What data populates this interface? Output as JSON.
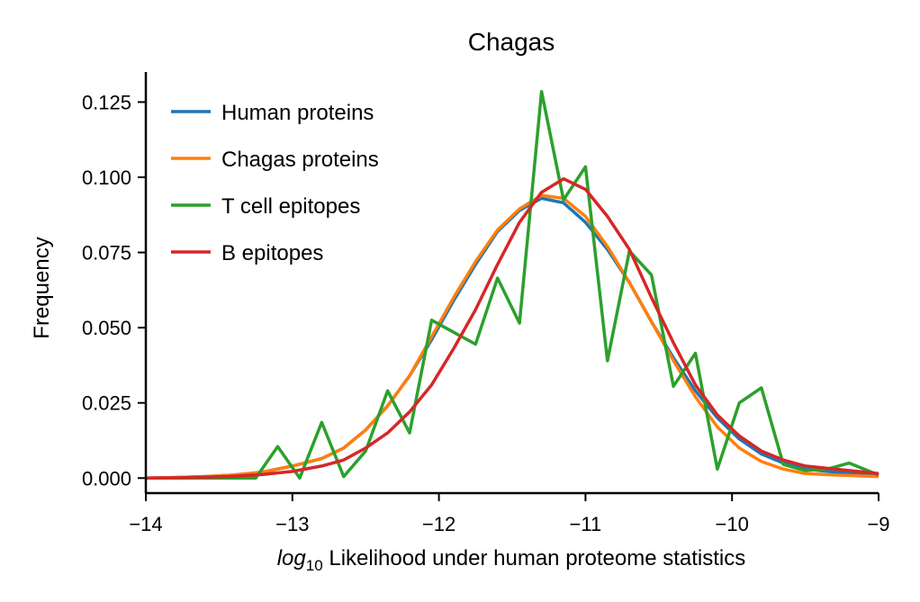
{
  "chart_data": {
    "type": "line",
    "title": "Chagas",
    "xlabel_prefix": "log",
    "xlabel_sub": "10",
    "xlabel_rest": " Likelihood under human proteome statistics",
    "ylabel": "Frequency",
    "xlim": [
      -14,
      -9
    ],
    "ylim": [
      -0.005,
      0.135
    ],
    "xticks": [
      -14,
      -13,
      -12,
      -11,
      -10,
      -9
    ],
    "xtick_labels": [
      "−14",
      "−13",
      "−12",
      "−11",
      "−10",
      "−9"
    ],
    "yticks": [
      0.0,
      0.025,
      0.05,
      0.075,
      0.1,
      0.125
    ],
    "ytick_labels": [
      "0.000",
      "0.025",
      "0.050",
      "0.075",
      "0.100",
      "0.125"
    ],
    "legend_position": "top-left",
    "series": [
      {
        "name": "Human proteins",
        "color": "#1f77b4",
        "x": [
          -14.0,
          -13.8,
          -13.6,
          -13.4,
          -13.2,
          -13.0,
          -12.8,
          -12.65,
          -12.5,
          -12.35,
          -12.2,
          -12.05,
          -11.9,
          -11.75,
          -11.6,
          -11.45,
          -11.3,
          -11.15,
          -11.0,
          -10.85,
          -10.7,
          -10.55,
          -10.4,
          -10.25,
          -10.1,
          -9.95,
          -9.8,
          -9.65,
          -9.5,
          -9.3,
          -9.0
        ],
        "y": [
          0.0,
          0.0002,
          0.0005,
          0.001,
          0.002,
          0.004,
          0.0065,
          0.01,
          0.016,
          0.024,
          0.034,
          0.046,
          0.059,
          0.071,
          0.082,
          0.089,
          0.093,
          0.0915,
          0.085,
          0.076,
          0.065,
          0.052,
          0.04,
          0.029,
          0.02,
          0.013,
          0.008,
          0.005,
          0.003,
          0.002,
          0.001
        ]
      },
      {
        "name": "Chagas proteins",
        "color": "#ff7f0e",
        "x": [
          -14.0,
          -13.8,
          -13.6,
          -13.4,
          -13.2,
          -13.0,
          -12.8,
          -12.65,
          -12.5,
          -12.35,
          -12.2,
          -12.05,
          -11.9,
          -11.75,
          -11.6,
          -11.45,
          -11.3,
          -11.15,
          -11.0,
          -10.85,
          -10.7,
          -10.55,
          -10.4,
          -10.25,
          -10.1,
          -9.95,
          -9.8,
          -9.65,
          -9.5,
          -9.3,
          -9.0
        ],
        "y": [
          0.0,
          0.0002,
          0.0005,
          0.001,
          0.002,
          0.004,
          0.0065,
          0.01,
          0.016,
          0.024,
          0.034,
          0.047,
          0.06,
          0.072,
          0.0825,
          0.0895,
          0.094,
          0.093,
          0.087,
          0.077,
          0.065,
          0.052,
          0.039,
          0.027,
          0.017,
          0.01,
          0.0055,
          0.003,
          0.0015,
          0.001,
          0.0005
        ]
      },
      {
        "name": "T cell epitopes",
        "color": "#2ca02c",
        "x": [
          -14.0,
          -13.7,
          -13.45,
          -13.25,
          -13.1,
          -12.95,
          -12.8,
          -12.65,
          -12.5,
          -12.35,
          -12.2,
          -12.05,
          -11.9,
          -11.75,
          -11.6,
          -11.45,
          -11.3,
          -11.15,
          -11.0,
          -10.85,
          -10.7,
          -10.55,
          -10.4,
          -10.25,
          -10.1,
          -9.95,
          -9.8,
          -9.65,
          -9.5,
          -9.35,
          -9.2,
          -9.0
        ],
        "y": [
          0.0,
          0.0,
          0.0,
          0.0,
          0.0105,
          0.0,
          0.0185,
          0.0005,
          0.009,
          0.029,
          0.015,
          0.0525,
          0.0485,
          0.0445,
          0.0665,
          0.0515,
          0.1285,
          0.0925,
          0.1035,
          0.039,
          0.0755,
          0.0675,
          0.0305,
          0.0415,
          0.003,
          0.025,
          0.03,
          0.0045,
          0.0025,
          0.003,
          0.005,
          0.001
        ]
      },
      {
        "name": "B epitopes",
        "color": "#d62728",
        "x": [
          -14.0,
          -13.8,
          -13.6,
          -13.4,
          -13.2,
          -13.0,
          -12.8,
          -12.65,
          -12.5,
          -12.35,
          -12.2,
          -12.05,
          -11.9,
          -11.75,
          -11.6,
          -11.45,
          -11.3,
          -11.15,
          -11.0,
          -10.85,
          -10.7,
          -10.55,
          -10.4,
          -10.25,
          -10.1,
          -9.95,
          -9.8,
          -9.65,
          -9.5,
          -9.3,
          -9.0
        ],
        "y": [
          0.0,
          0.0001,
          0.0003,
          0.0006,
          0.0012,
          0.0022,
          0.004,
          0.006,
          0.01,
          0.015,
          0.022,
          0.031,
          0.043,
          0.056,
          0.071,
          0.085,
          0.095,
          0.0995,
          0.096,
          0.087,
          0.076,
          0.06,
          0.045,
          0.031,
          0.021,
          0.014,
          0.009,
          0.006,
          0.004,
          0.003,
          0.0015
        ]
      }
    ]
  }
}
